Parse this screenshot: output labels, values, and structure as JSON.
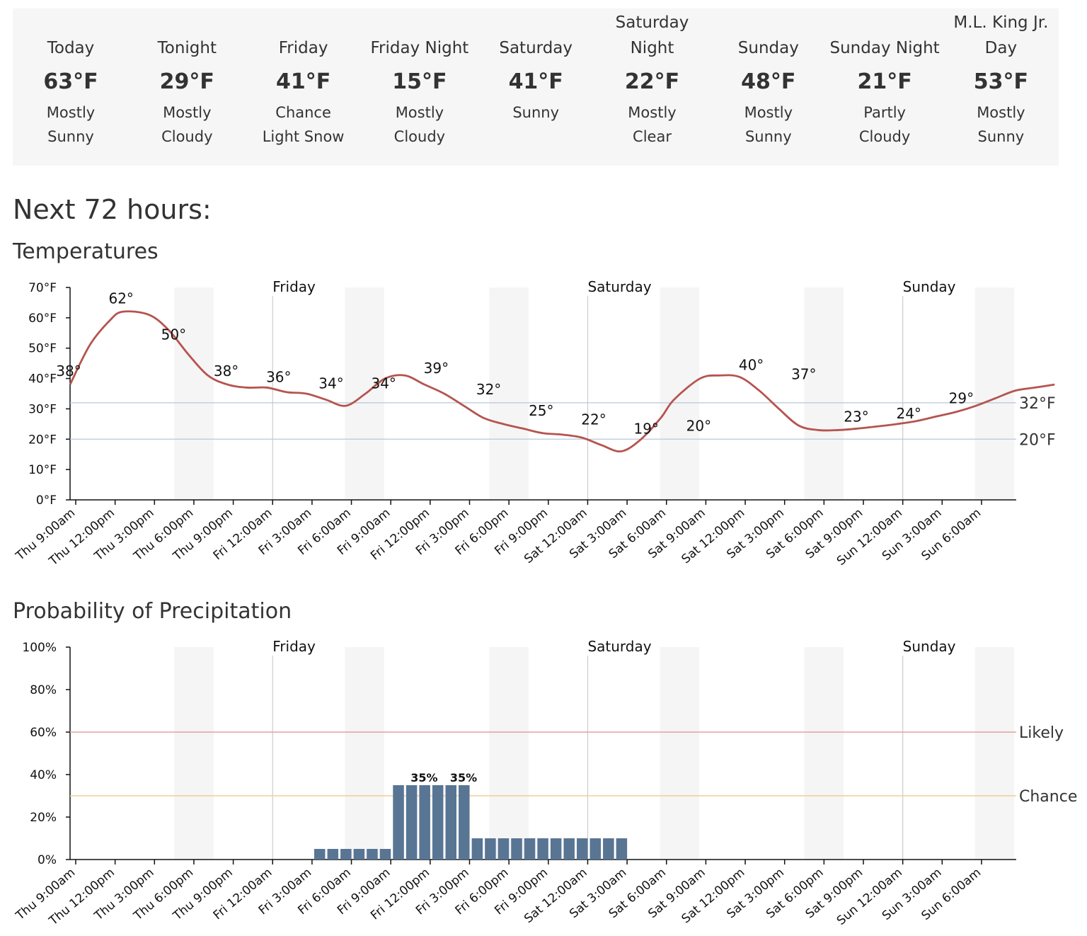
{
  "forecast": [
    {
      "name": "Today",
      "temp": "63°F",
      "desc": [
        "Mostly",
        "Sunny"
      ]
    },
    {
      "name": "Tonight",
      "temp": "29°F",
      "desc": [
        "Mostly",
        "Cloudy"
      ]
    },
    {
      "name": "Friday",
      "temp": "41°F",
      "desc": [
        "Chance",
        "Light Snow"
      ]
    },
    {
      "name": "Friday Night",
      "temp": "15°F",
      "desc": [
        "Mostly",
        "Cloudy"
      ]
    },
    {
      "name": "Saturday",
      "temp": "41°F",
      "desc": [
        "Sunny"
      ]
    },
    {
      "name": "Saturday Night",
      "temp": "22°F",
      "desc": [
        "Mostly",
        "Clear"
      ]
    },
    {
      "name": "Sunday",
      "temp": "48°F",
      "desc": [
        "Mostly",
        "Sunny"
      ]
    },
    {
      "name": "Sunday Night",
      "temp": "21°F",
      "desc": [
        "Partly",
        "Cloudy"
      ]
    },
    {
      "name": "M.L. King Jr. Day",
      "temp": "53°F",
      "desc": [
        "Mostly",
        "Sunny"
      ]
    }
  ],
  "heading": "Next 72 hours:",
  "chart_data": [
    {
      "type": "line",
      "title": "Temperatures",
      "x_ticks": [
        "Thu 9:00am",
        "Thu 12:00pm",
        "Thu 3:00pm",
        "Thu 6:00pm",
        "Thu 9:00pm",
        "Fri 12:00am",
        "Fri 3:00am",
        "Fri 6:00am",
        "Fri 9:00am",
        "Fri 12:00pm",
        "Fri 3:00pm",
        "Fri 6:00pm",
        "Fri 9:00pm",
        "Sat 12:00am",
        "Sat 3:00am",
        "Sat 6:00am",
        "Sat 9:00am",
        "Sat 12:00pm",
        "Sat 3:00pm",
        "Sat 6:00pm",
        "Sat 9:00pm",
        "Sun 12:00am",
        "Sun 3:00am",
        "Sun 6:00am"
      ],
      "y_ticks": [
        "0°F",
        "10°F",
        "20°F",
        "30°F",
        "40°F",
        "50°F",
        "60°F",
        "70°F"
      ],
      "ylim": [
        0,
        70
      ],
      "day_labels": [
        "Friday",
        "Saturday",
        "Sunday"
      ],
      "reference_lines": [
        {
          "label": "32°F",
          "value": 32
        },
        {
          "label": "20°F",
          "value": 20
        }
      ],
      "hours": [
        0,
        1.5,
        3,
        4,
        6,
        7.5,
        9,
        10.5,
        12,
        13.5,
        15,
        16.5,
        18,
        19.5,
        21,
        22.5,
        24,
        25.5,
        27,
        28.5,
        30,
        31.5,
        33,
        34.5,
        36,
        37.5,
        39,
        40.5,
        42,
        43.5,
        45,
        46,
        48,
        49.5,
        51,
        52.5,
        54,
        55.5,
        57,
        58.5,
        60,
        61.5,
        63,
        64.5,
        66,
        67.5,
        69,
        70.5,
        72,
        73.5,
        75
      ],
      "temps": [
        38,
        51,
        59,
        62,
        61,
        56,
        48,
        41,
        38,
        37,
        37,
        35.5,
        35,
        33,
        31,
        35,
        40,
        41,
        38,
        35,
        31,
        27,
        25,
        23.5,
        22,
        21.5,
        20.5,
        18,
        16,
        20,
        27,
        33,
        40,
        41,
        40.5,
        36,
        30,
        24.5,
        23,
        23,
        23.5,
        24.2,
        25,
        26,
        27.5,
        29,
        31,
        33.5,
        36,
        37,
        38
      ],
      "point_labels": [
        {
          "h": 0,
          "t": 38,
          "text": "38°"
        },
        {
          "h": 4,
          "t": 62,
          "text": "62°"
        },
        {
          "h": 8,
          "t": 50,
          "text": "50°"
        },
        {
          "h": 12,
          "t": 38,
          "text": "38°"
        },
        {
          "h": 16,
          "t": 36,
          "text": "36°"
        },
        {
          "h": 20,
          "t": 34,
          "text": "34°"
        },
        {
          "h": 24,
          "t": 34,
          "text": "34°"
        },
        {
          "h": 28,
          "t": 39,
          "text": "39°"
        },
        {
          "h": 32,
          "t": 32,
          "text": "32°"
        },
        {
          "h": 36,
          "t": 25,
          "text": "25°"
        },
        {
          "h": 40,
          "t": 22,
          "text": "22°"
        },
        {
          "h": 44,
          "t": 19,
          "text": "19°"
        },
        {
          "h": 48,
          "t": 20,
          "text": "20°"
        },
        {
          "h": 52,
          "t": 40,
          "text": "40°"
        },
        {
          "h": 56,
          "t": 37,
          "text": "37°"
        },
        {
          "h": 60,
          "t": 23,
          "text": "23°"
        },
        {
          "h": 64,
          "t": 24,
          "text": "24°"
        },
        {
          "h": 68,
          "t": 29,
          "text": "29°"
        }
      ],
      "colors": {
        "line": "#b5544f",
        "ref": "#b8c8dc",
        "night": "#f5f5f5"
      }
    },
    {
      "type": "bar",
      "title": "Probability of Precipitation",
      "x_ticks": [
        "Thu 9:00am",
        "Thu 12:00pm",
        "Thu 3:00pm",
        "Thu 6:00pm",
        "Thu 9:00pm",
        "Fri 12:00am",
        "Fri 3:00am",
        "Fri 6:00am",
        "Fri 9:00am",
        "Fri 12:00pm",
        "Fri 3:00pm",
        "Fri 6:00pm",
        "Fri 9:00pm",
        "Sat 12:00am",
        "Sat 3:00am",
        "Sat 6:00am",
        "Sat 9:00am",
        "Sat 12:00pm",
        "Sat 3:00pm",
        "Sat 6:00pm",
        "Sat 9:00pm",
        "Sun 12:00am",
        "Sun 3:00am",
        "Sun 6:00am"
      ],
      "y_ticks": [
        "0%",
        "20%",
        "40%",
        "60%",
        "80%",
        "100%"
      ],
      "ylim": [
        0,
        100
      ],
      "day_labels": [
        "Friday",
        "Saturday",
        "Sunday"
      ],
      "reference_lines": [
        {
          "label": "Likely",
          "value": 60,
          "color": "#e8a0a0"
        },
        {
          "label": "Chance",
          "value": 30,
          "color": "#f0d090"
        }
      ],
      "bars": [
        {
          "h": 20,
          "v": 5
        },
        {
          "h": 21,
          "v": 5
        },
        {
          "h": 22,
          "v": 5
        },
        {
          "h": 23,
          "v": 5
        },
        {
          "h": 24,
          "v": 5
        },
        {
          "h": 25,
          "v": 5
        },
        {
          "h": 26,
          "v": 35
        },
        {
          "h": 27,
          "v": 35
        },
        {
          "h": 28,
          "v": 35
        },
        {
          "h": 29,
          "v": 35
        },
        {
          "h": 30,
          "v": 35
        },
        {
          "h": 31,
          "v": 35
        },
        {
          "h": 32,
          "v": 10
        },
        {
          "h": 33,
          "v": 10
        },
        {
          "h": 34,
          "v": 10
        },
        {
          "h": 35,
          "v": 10
        },
        {
          "h": 36,
          "v": 10
        },
        {
          "h": 37,
          "v": 10
        },
        {
          "h": 38,
          "v": 10
        },
        {
          "h": 39,
          "v": 10
        },
        {
          "h": 40,
          "v": 10
        },
        {
          "h": 41,
          "v": 10
        },
        {
          "h": 42,
          "v": 10
        },
        {
          "h": 43,
          "v": 10
        }
      ],
      "bar_labels": [
        {
          "h": 28,
          "v": 35,
          "text": "35%"
        },
        {
          "h": 31,
          "v": 35,
          "text": "35%"
        }
      ],
      "colors": {
        "bar": "#587594",
        "night": "#f5f5f5"
      }
    }
  ]
}
